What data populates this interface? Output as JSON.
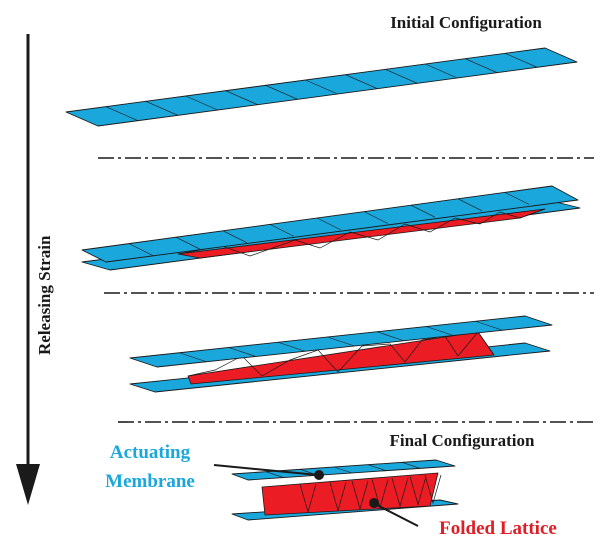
{
  "labels": {
    "initial": "Initial Configuration",
    "final": "Final Configuration",
    "releasing": "Releasing Strain",
    "membrane_line1": "Actuating",
    "membrane_line2": "Membrane",
    "lattice": "Folded Lattice"
  },
  "colors": {
    "membrane": "#1aa7dc",
    "lattice": "#ec1c24",
    "label_blue": "#1aa7dc",
    "label_red": "#e01c24",
    "ink": "#1a1a1a"
  }
}
